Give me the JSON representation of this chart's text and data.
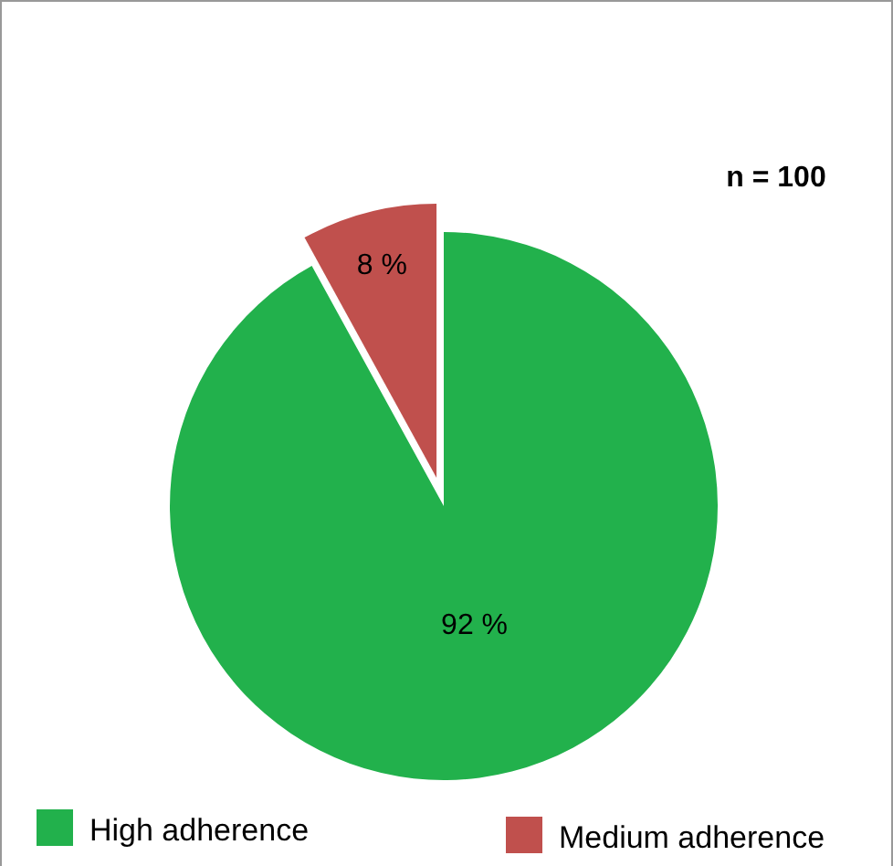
{
  "chart_data": {
    "type": "pie",
    "categories": [
      "High adherence",
      "Medium adherence"
    ],
    "values": [
      92,
      8
    ],
    "colors": [
      "#22b14c",
      "#c0504d"
    ],
    "value_labels": [
      "92 %",
      "8 %"
    ],
    "annotations": [
      "n = 100"
    ],
    "legend": "bottom"
  }
}
